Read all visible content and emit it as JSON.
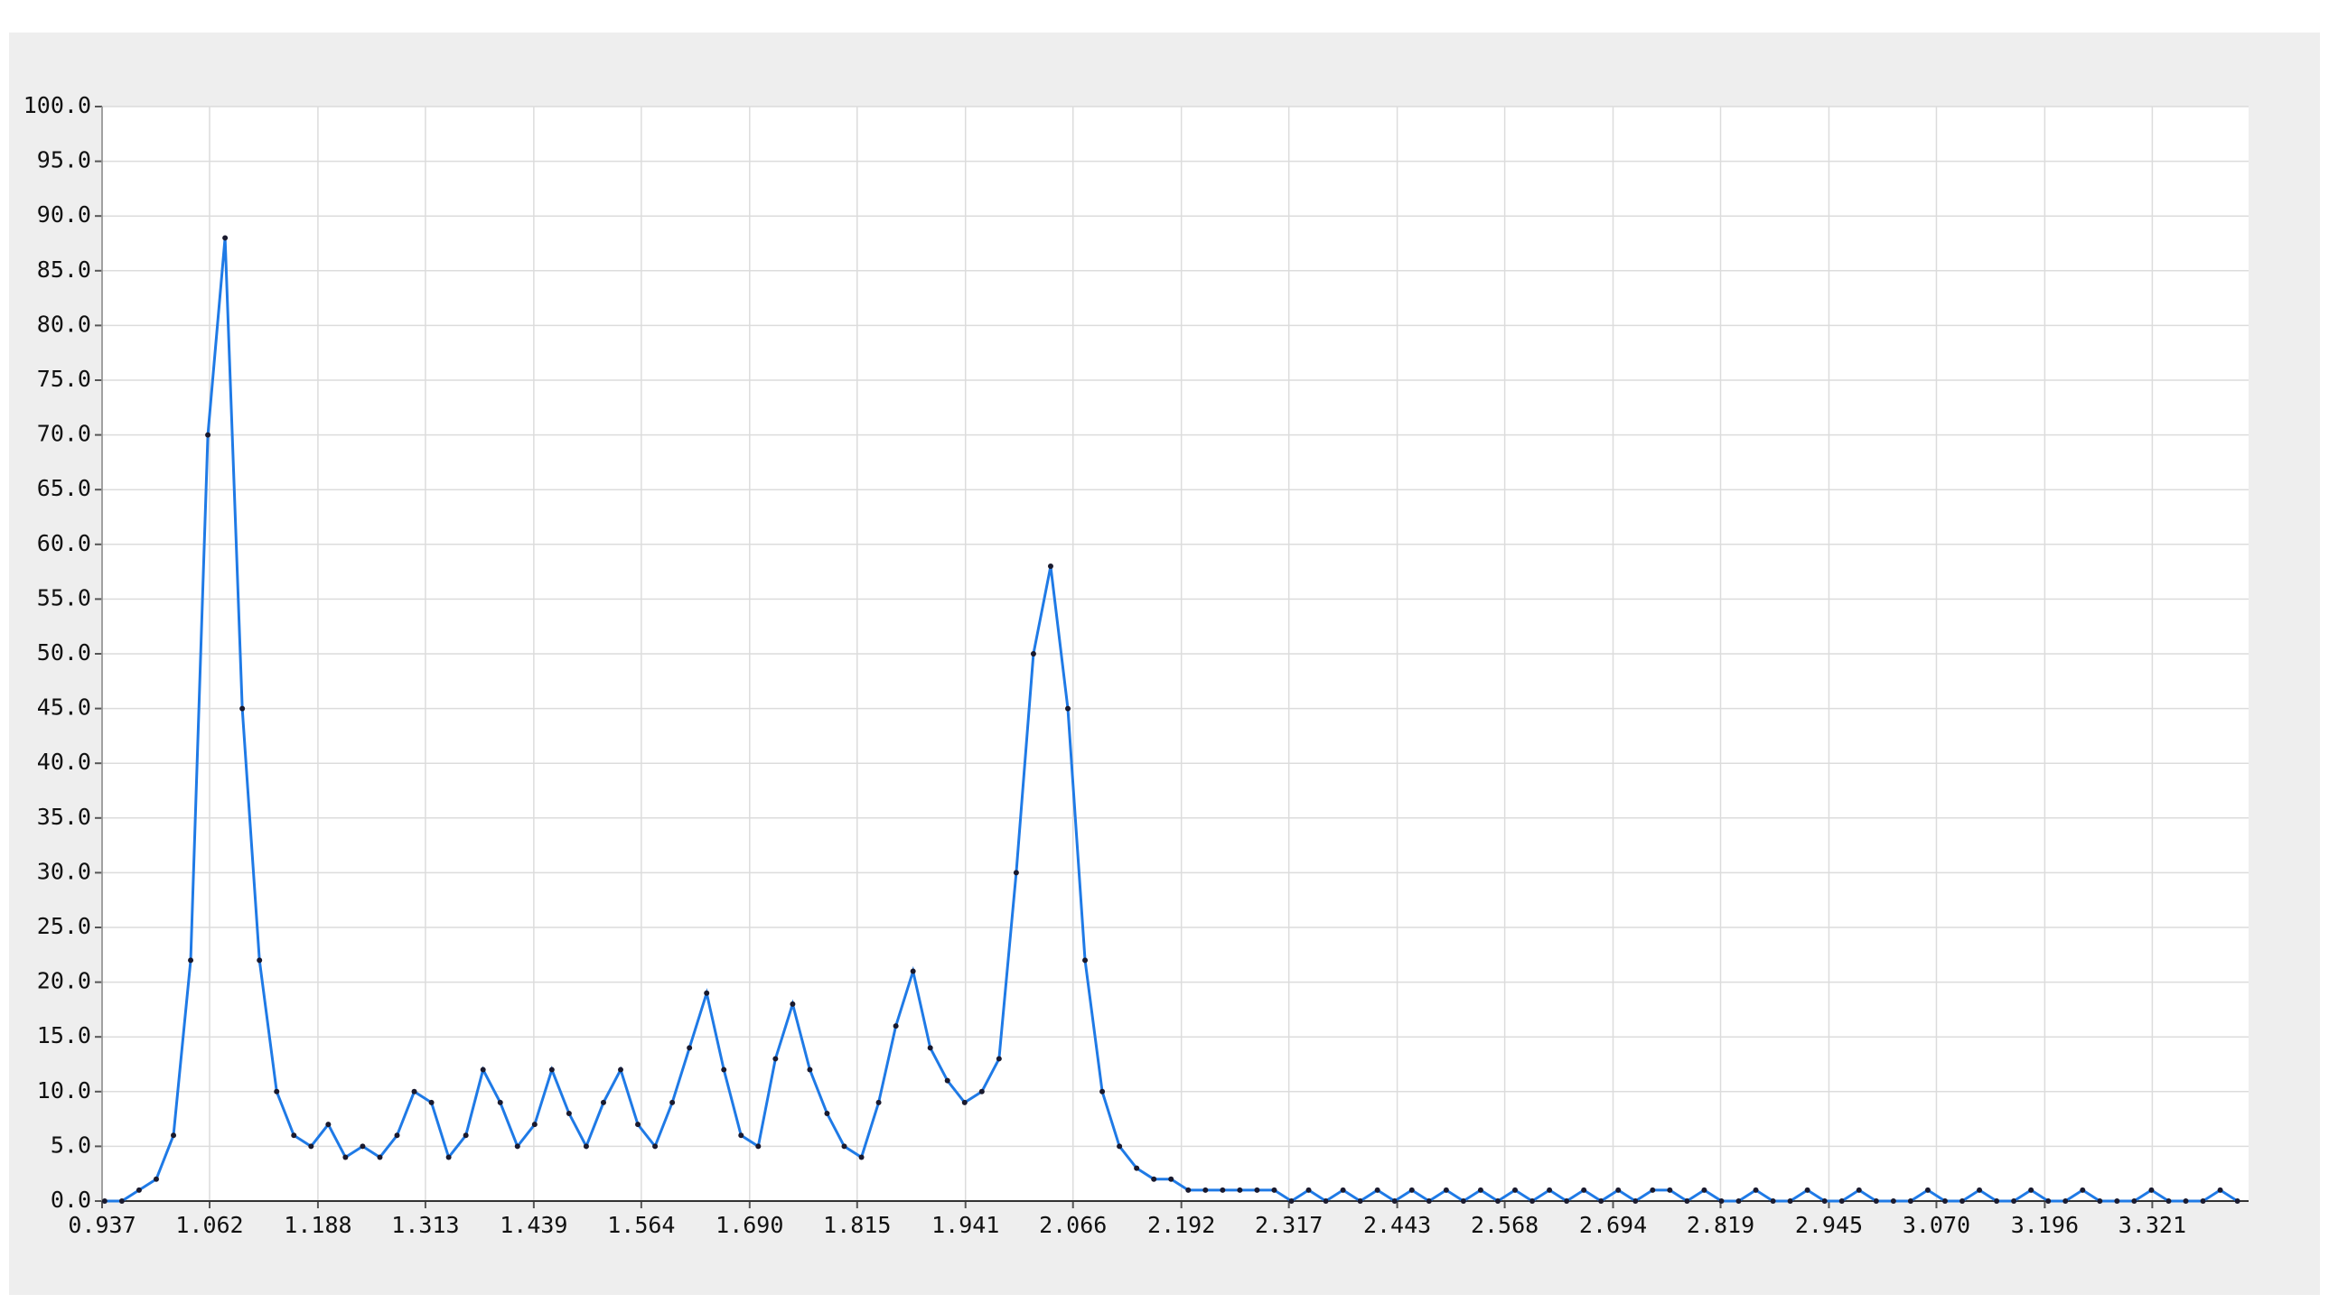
{
  "chart_data": {
    "type": "line",
    "x": [
      0.94,
      0.96,
      0.98,
      1.0,
      1.02,
      1.04,
      1.06,
      1.08,
      1.1,
      1.12,
      1.14,
      1.16,
      1.18,
      1.2,
      1.22,
      1.24,
      1.26,
      1.28,
      1.3,
      1.32,
      1.34,
      1.36,
      1.38,
      1.4,
      1.42,
      1.44,
      1.46,
      1.48,
      1.5,
      1.52,
      1.54,
      1.56,
      1.58,
      1.6,
      1.62,
      1.64,
      1.66,
      1.68,
      1.7,
      1.72,
      1.74,
      1.76,
      1.78,
      1.8,
      1.82,
      1.84,
      1.86,
      1.88,
      1.9,
      1.92,
      1.94,
      1.96,
      1.98,
      2.0,
      2.02,
      2.04,
      2.06,
      2.08,
      2.1,
      2.12,
      2.14,
      2.16,
      2.18,
      2.2,
      2.22,
      2.24,
      2.26,
      2.28,
      2.3,
      2.32,
      2.34,
      2.36,
      2.38,
      2.4,
      2.42,
      2.44,
      2.46,
      2.48,
      2.5,
      2.52,
      2.54,
      2.56,
      2.58,
      2.6,
      2.62,
      2.64,
      2.66,
      2.68,
      2.7,
      2.72,
      2.74,
      2.76,
      2.78,
      2.8,
      2.82,
      2.84,
      2.86,
      2.88,
      2.9,
      2.92,
      2.94,
      2.96,
      2.98,
      3.0,
      3.02,
      3.04,
      3.06,
      3.08,
      3.1,
      3.12,
      3.14,
      3.16,
      3.18,
      3.2,
      3.22,
      3.24,
      3.26,
      3.28,
      3.3,
      3.32,
      3.34,
      3.36,
      3.38,
      3.4,
      3.42
    ],
    "series": [
      {
        "color": "#1f7ae6",
        "marker_color": "#1a1a2e",
        "values": [
          0,
          0,
          1,
          2,
          6,
          22,
          70,
          88,
          45,
          22,
          10,
          6,
          5,
          7,
          4,
          5,
          4,
          6,
          10,
          9,
          4,
          6,
          12,
          9,
          5,
          7,
          12,
          8,
          5,
          9,
          12,
          7,
          5,
          9,
          14,
          19,
          12,
          6,
          5,
          13,
          18,
          12,
          8,
          5,
          4,
          9,
          16,
          21,
          14,
          11,
          9,
          10,
          13,
          30,
          50,
          58,
          45,
          22,
          10,
          5,
          3,
          2,
          2,
          1,
          1,
          1,
          1,
          1,
          1,
          0,
          1,
          0,
          1,
          0,
          1,
          0,
          1,
          0,
          1,
          0,
          1,
          0,
          1,
          0,
          1,
          0,
          1,
          0,
          1,
          0,
          1,
          1,
          0,
          1,
          0,
          0,
          1,
          0,
          0,
          1,
          0,
          0,
          1,
          0,
          0,
          0,
          1,
          0,
          0,
          1,
          0,
          0,
          1,
          0,
          0,
          1,
          0,
          0,
          0,
          1,
          0,
          0,
          0,
          1,
          0
        ]
      }
    ],
    "xlim": [
      0.937,
      3.433
    ],
    "ylim": [
      0,
      100
    ],
    "xticks": [
      0.937,
      1.062,
      1.188,
      1.313,
      1.439,
      1.564,
      {
        "value": 1.69,
        "label": "1.690"
      },
      1.815,
      1.941,
      2.066,
      2.192,
      2.317,
      2.443,
      2.568,
      2.694,
      2.819,
      2.945,
      {
        "value": 3.07,
        "label": "3.070"
      },
      3.196,
      3.321
    ],
    "yticks": [
      {
        "value": 0,
        "label": "0.0"
      },
      {
        "value": 5,
        "label": "5.0"
      },
      {
        "value": 10,
        "label": "10.0"
      },
      {
        "value": 15,
        "label": "15.0"
      },
      {
        "value": 20,
        "label": "20.0"
      },
      {
        "value": 25,
        "label": "25.0"
      },
      {
        "value": 30,
        "label": "30.0"
      },
      {
        "value": 35,
        "label": "35.0"
      },
      {
        "value": 40,
        "label": "40.0"
      },
      {
        "value": 45,
        "label": "45.0"
      },
      {
        "value": 50,
        "label": "50.0"
      },
      {
        "value": 55,
        "label": "55.0"
      },
      {
        "value": 60,
        "label": "60.0"
      },
      {
        "value": 65,
        "label": "65.0"
      },
      {
        "value": 70,
        "label": "70.0"
      },
      {
        "value": 75,
        "label": "75.0"
      },
      {
        "value": 80,
        "label": "80.0"
      },
      {
        "value": 85,
        "label": "85.0"
      },
      {
        "value": 90,
        "label": "90.0"
      },
      {
        "value": 95,
        "label": "95.0"
      },
      {
        "value": 100,
        "label": "100.0"
      }
    ],
    "grid": true
  }
}
